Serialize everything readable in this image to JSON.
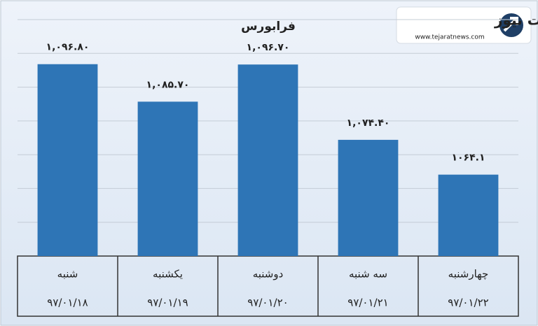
{
  "chart_data": {
    "type": "bar",
    "title": "فرابورس",
    "categories": [
      "شنبه",
      "یکشنبه",
      "دوشنبه",
      "سه شنبه",
      "چهارشنبه"
    ],
    "dates": [
      "۹۷/۰۱/۱۸",
      "۹۷/۰۱/۱۹",
      "۹۷/۰۱/۲۰",
      "۹۷/۰۱/۲۱",
      "۹۷/۰۱/۲۲"
    ],
    "values": [
      1096.8,
      1085.7,
      1096.7,
      1074.4,
      1064.1
    ],
    "value_labels": [
      "۱,۰۹۶.۸۰",
      "۱,۰۸۵.۷۰",
      "۱,۰۹۶.۷۰",
      "۱,۰۷۴.۴۰",
      "۱۰۶۴.۱"
    ],
    "color": "#2e75b6",
    "ylim": [
      1040,
      1110
    ],
    "yticks": [
      1040,
      1050,
      1060,
      1070,
      1080,
      1090,
      1100,
      1110
    ],
    "grid": true
  },
  "logo": {
    "name": "تجارت نیوز",
    "url": "www.tejaratnews.com"
  }
}
